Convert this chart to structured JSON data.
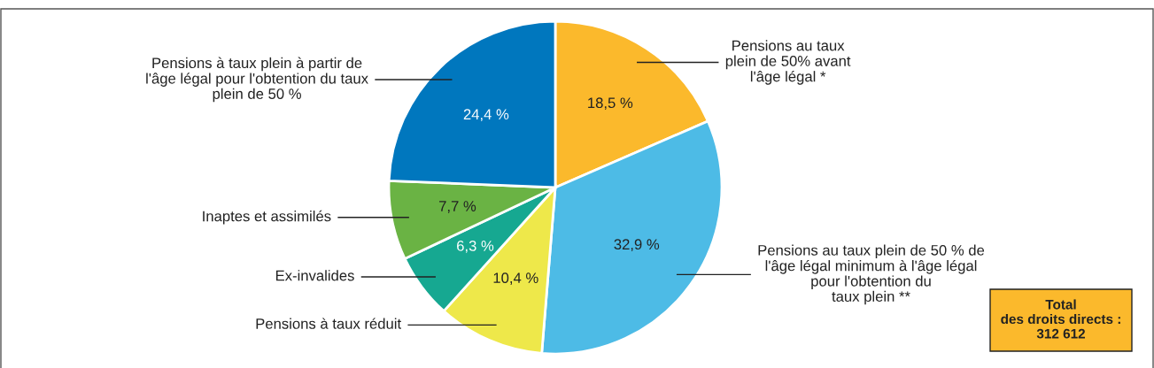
{
  "chart_data": {
    "type": "pie",
    "categories": [
      "Pensions au taux\nplein de 50% avant\nl'âge légal *",
      "Pensions au taux plein de 50 % de\nl'âge légal minimum à l'âge légal\npour l'obtention du\ntaux plein **",
      "Pensions à taux réduit",
      "Ex-invalides",
      "Inaptes et assimilés",
      "Pensions à taux plein à partir de\nl'âge légal pour l'obtention du taux\nplein de 50 %"
    ],
    "values": [
      18.5,
      32.9,
      10.4,
      6.3,
      7.7,
      24.4
    ],
    "colors": [
      "#fbb92c",
      "#4dbbe6",
      "#eee84a",
      "#16a891",
      "#6ab344",
      "#0077be"
    ],
    "value_labels": [
      "18,5 %",
      "32,9 %",
      "10,4 %",
      "6,3 %",
      "7,7 %",
      "24,4 %"
    ],
    "annotations": [
      "Total\ndes droits directs :\n312 612"
    ],
    "legend": false
  }
}
